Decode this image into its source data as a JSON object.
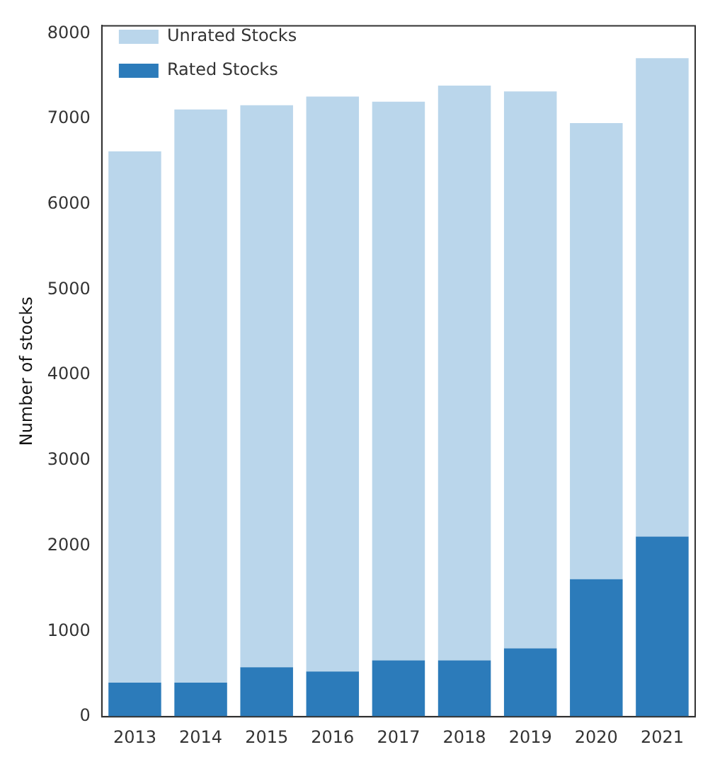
{
  "chart_data": {
    "type": "bar",
    "ylabel": "Number of stocks",
    "categories": [
      "2013",
      "2014",
      "2015",
      "2016",
      "2017",
      "2018",
      "2019",
      "2020",
      "2021"
    ],
    "stacked": true,
    "series": [
      {
        "name": "Rated Stocks",
        "color": "#2c7bba",
        "values": [
          400,
          400,
          580,
          530,
          660,
          660,
          800,
          1610,
          2110
        ]
      },
      {
        "name": "Unrated Stocks",
        "color": "#bad6eb",
        "values": [
          6220,
          6710,
          6580,
          6730,
          6540,
          6730,
          6520,
          5340,
          5600
        ]
      }
    ],
    "ylim": [
      0,
      8090
    ],
    "yticks": [
      0,
      1000,
      2000,
      3000,
      4000,
      5000,
      6000,
      7000,
      8000
    ],
    "grid": false,
    "legend": "top left"
  }
}
